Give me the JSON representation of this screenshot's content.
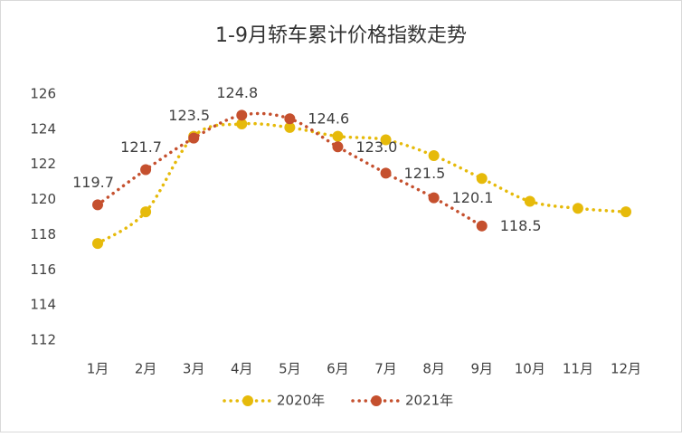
{
  "chart_data": {
    "type": "line",
    "title": "1-9月轿车累计价格指数走势",
    "categories": [
      "1月",
      "2月",
      "3月",
      "4月",
      "5月",
      "6月",
      "7月",
      "8月",
      "9月",
      "10月",
      "11月",
      "12月"
    ],
    "series": [
      {
        "name": "2020年",
        "color": "#E6BA0A",
        "values": [
          117.5,
          119.3,
          123.6,
          124.3,
          124.1,
          123.6,
          123.4,
          122.5,
          121.2,
          119.9,
          119.5,
          119.3
        ]
      },
      {
        "name": "2021年",
        "color": "#C5502E",
        "values": [
          119.7,
          121.7,
          123.5,
          124.8,
          124.6,
          123.0,
          121.5,
          120.1,
          118.5,
          null,
          null,
          null
        ],
        "value_labels": [
          "119.7",
          "121.7",
          "123.5",
          "124.8",
          "124.6",
          "123.0",
          "121.5",
          "120.1",
          "118.5",
          null,
          null,
          null
        ],
        "label_color": "#FF0000"
      }
    ],
    "ylim": [
      112,
      126
    ],
    "yticks": [
      112,
      114,
      116,
      118,
      120,
      122,
      124,
      126
    ],
    "legend": "bottom"
  }
}
